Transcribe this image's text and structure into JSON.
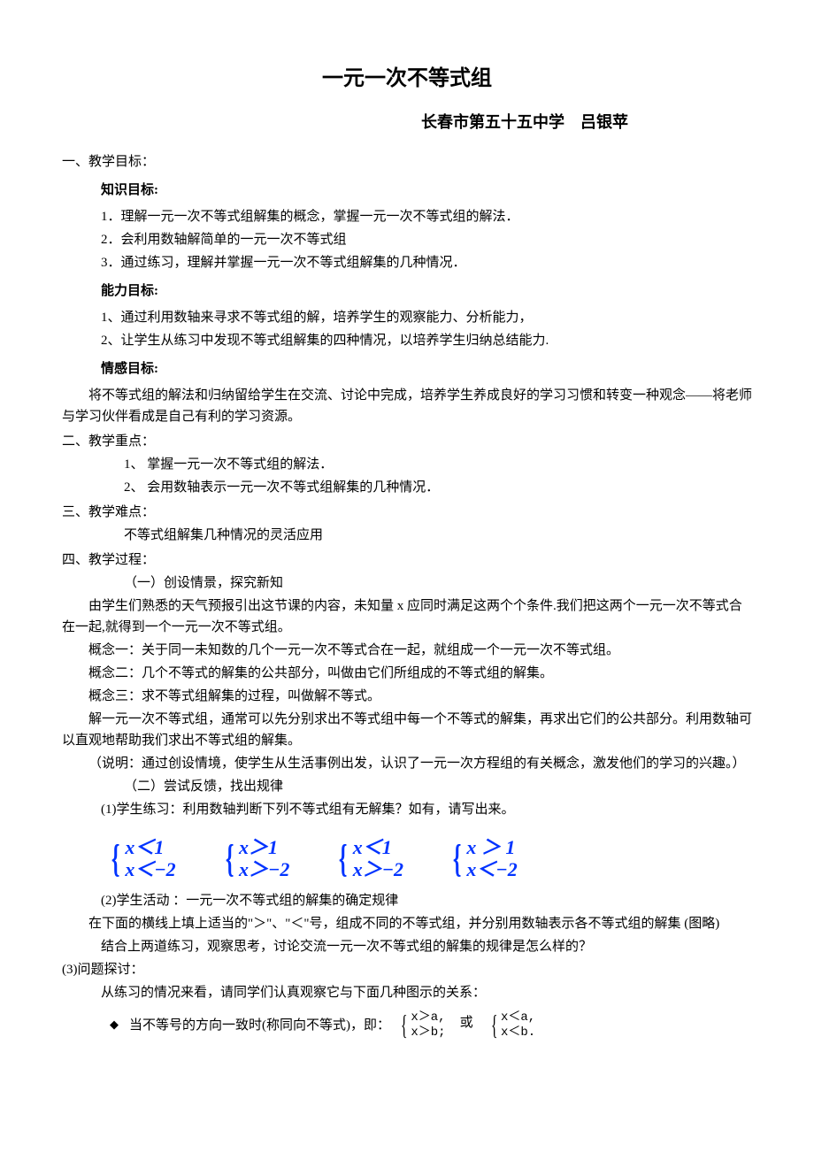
{
  "title": "一元一次不等式组",
  "subtitle": "长春市第五十五中学　吕银苹",
  "s1": {
    "head": "一、教学目标：",
    "knowledge": {
      "head": "知识目标:",
      "items": [
        "1．理解一元一次不等式组解集的概念，掌握一元一次不等式组的解法．",
        "2．会利用数轴解简单的一元一次不等式组",
        "3．通过练习，理解并掌握一元一次不等式组解集的几种情况．"
      ]
    },
    "ability": {
      "head": "能力目标:",
      "items": [
        "1、通过利用数轴来寻求不等式组的解，培养学生的观察能力、分析能力，",
        "2、让学生从练习中发现不等式组解集的四种情况，以培养学生归纳总结能力."
      ]
    },
    "emotion": {
      "head": "情感目标:",
      "para": "将不等式组的解法和归纳留给学生在交流、讨论中完成，培养学生养成良好的学习习惯和转变一种观念——将老师与学习伙伴看成是自己有利的学习资源。"
    }
  },
  "s2": {
    "head": "二、教学重点：",
    "items": [
      "1、 掌握一元一次不等式组的解法．",
      "2、 会用数轴表示一元一次不等式组解集的几种情况．"
    ]
  },
  "s3": {
    "head": "三、教学难点：",
    "p": "不等式组解集几种情况的灵活应用"
  },
  "s4": {
    "head": " 四、教学过程：",
    "sub1": "（一）创设情景，探究新知",
    "p1": "由学生们熟悉的天气预报引出这节课的内容，未知量 x 应同时满足这两个个条件.我们把这两个一元一次不等式合在一起,就得到一个一元一次不等式组。",
    "p2": "概念一：关于同一未知数的几个一元一次不等式合在一起，就组成一个一元一次不等式组。",
    "p3": "概念二：几个不等式的解集的公共部分，叫做由它们所组成的不等式组的解集。",
    "p4": "概念三：求不等式组解集的过程，叫做解不等式。",
    "p5": "解一元一次不等式组，通常可以先分别求出不等式组中每一个不等式的解集，再求出它们的公共部分。利用数轴可以直观地帮助我们求出不等式组的解集。",
    "p6": "（说明：通过创设情境，使学生从生活事例出发，认识了一元一次方程组的有关概念，激发他们的学习的兴趣。）",
    "sub2": "（二）尝试反馈，找出规律",
    "p7": "(1)学生练习：利用数轴判断下列不等式组有无解集？如有，请写出来。",
    "math": {
      "color": "#0033ff",
      "groups": [
        {
          "l1": "x＜1",
          "l2": "x＜−2"
        },
        {
          "l1": "x＞1",
          "l2": "x＞−2"
        },
        {
          "l1": "x＜1",
          "l2": "x＞−2"
        },
        {
          "l1": "x ＞ 1",
          "l2": "x＜−2"
        }
      ]
    },
    "p8": "(2)学生活动 ：一元一次不等式组的解集的确定规律",
    "p9": "在下面的横线上填上适当的\"＞\"、\"＜\"号，组成不同的不等式组，并分别用数轴表示各不等式组的解集 (图略)",
    "p10": "结合上两道练习，观察思考，讨论交流一元一次不等式组的解集的规律是怎么样的？",
    "p11": "(3)问题探讨：",
    "p12": "从练习的情况来看，请同学们认真观察它与下面几种图示的关系：",
    "bottom": {
      "bullet": "◆",
      "text": "当不等号的方向一致时(称同向不等式)，即：",
      "g1": {
        "l1": "x＞a,",
        "l2": "x＞b;"
      },
      "or": "或",
      "g2": {
        "l1": "x＜a,",
        "l2": "x＜b."
      }
    }
  }
}
